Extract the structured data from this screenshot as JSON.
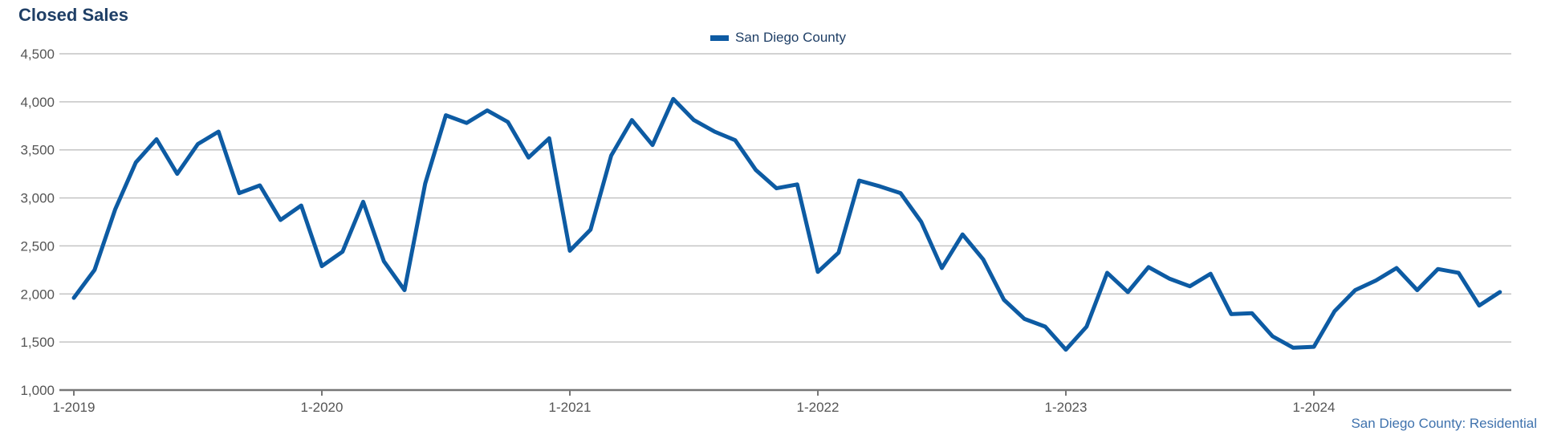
{
  "colors": {
    "series": "#0d5ba3",
    "title": "#1f3f66",
    "grid": "#c4c4c4",
    "axis": "#777777",
    "footer": "#3f72ad"
  },
  "footer": "San Diego County: Residential",
  "chart_data": {
    "type": "line",
    "title": "Closed Sales",
    "xlabel": "",
    "ylabel": "",
    "ylim": [
      1000,
      4500
    ],
    "yticks": [
      1000,
      1500,
      2000,
      2500,
      3000,
      3500,
      4000,
      4500
    ],
    "ytick_labels": [
      "1,000",
      "1,500",
      "2,000",
      "2,500",
      "3,000",
      "3,500",
      "4,000",
      "4,500"
    ],
    "xtick_labels": [
      "1-2019",
      "1-2020",
      "1-2021",
      "1-2022",
      "1-2023",
      "1-2024"
    ],
    "grid": true,
    "legend": "top-center",
    "series": [
      {
        "name": "San Diego County",
        "start": "1-2019",
        "frequency": "monthly",
        "values": [
          1960,
          2250,
          2880,
          3370,
          3610,
          3250,
          3560,
          3690,
          3050,
          3130,
          2770,
          2920,
          2290,
          2440,
          2960,
          2340,
          2040,
          3150,
          3860,
          3780,
          3910,
          3790,
          3420,
          3620,
          2450,
          2670,
          3440,
          3810,
          3550,
          4030,
          3810,
          3690,
          3600,
          3290,
          3100,
          3140,
          2230,
          2430,
          3180,
          3120,
          3050,
          2750,
          2270,
          2620,
          2360,
          1940,
          1740,
          1660,
          1420,
          1660,
          2220,
          2020,
          2280,
          2160,
          2080,
          2210,
          1790,
          1800,
          1560,
          1440,
          1450,
          1820,
          2040,
          2140,
          2270,
          2040,
          2260,
          2220,
          1880,
          2020
        ]
      }
    ]
  }
}
